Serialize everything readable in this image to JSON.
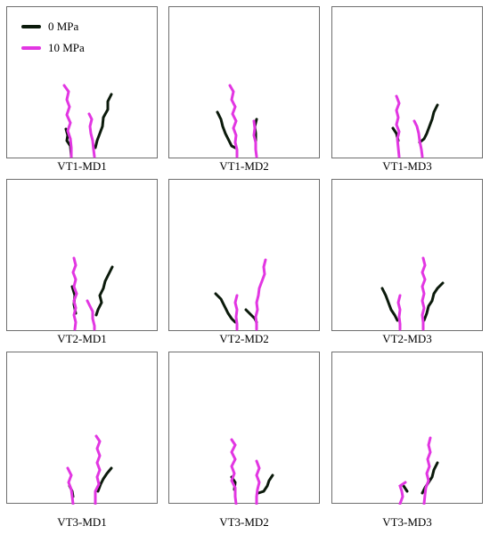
{
  "legend": [
    {
      "label": "0 MPa",
      "color": "#0b1a0b"
    },
    {
      "label": "10 MPa",
      "color": "#e236e2"
    }
  ],
  "panels": [
    {
      "caption": "VT1-MD1"
    },
    {
      "caption": "VT1-MD2"
    },
    {
      "caption": "VT1-MD3"
    },
    {
      "caption": "VT2-MD1"
    },
    {
      "caption": "VT2-MD2"
    },
    {
      "caption": "VT2-MD3"
    },
    {
      "caption": "VT3-MD1"
    },
    {
      "caption": "VT3-MD2"
    },
    {
      "caption": "VT3-MD3"
    }
  ]
}
